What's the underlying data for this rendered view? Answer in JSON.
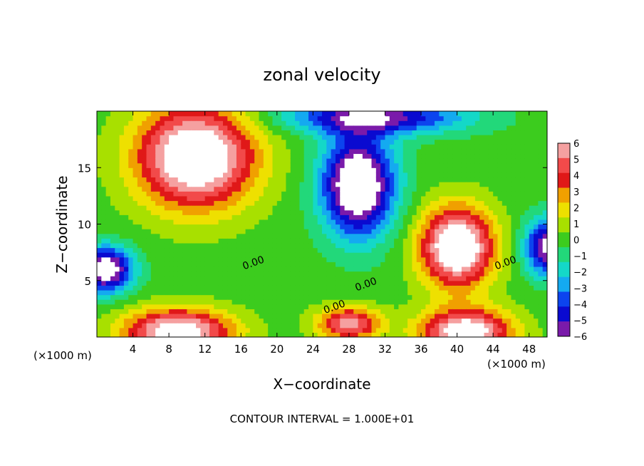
{
  "chart_data": {
    "type": "heatmap",
    "title": "zonal velocity",
    "xlabel": "X−coordinate",
    "ylabel": "Z−coordinate",
    "x_unit_left": "(×1000 m)",
    "x_unit_right": "(×1000 m)",
    "footer": "CONTOUR INTERVAL = 1.000E+01",
    "xlim": [
      0,
      50
    ],
    "ylim": [
      0,
      20
    ],
    "x_ticks": [
      "4",
      "8",
      "12",
      "16",
      "20",
      "24",
      "28",
      "32",
      "36",
      "40",
      "44",
      "48"
    ],
    "y_ticks": [
      "5",
      "10",
      "15"
    ],
    "colorbar": {
      "min": -6,
      "max": 6,
      "labels": [
        "6",
        "5",
        "4",
        "3",
        "2",
        "1",
        "0",
        "−1",
        "−2",
        "−3",
        "−4",
        "−5",
        "−6"
      ],
      "colors": [
        "#f5a0a0",
        "#f24a4a",
        "#e01818",
        "#f0a000",
        "#eee000",
        "#a8e000",
        "#3ccc1e",
        "#22d87a",
        "#14d8c8",
        "#14aaf0",
        "#0c44ee",
        "#0a0ad0",
        "#7a1aaa"
      ]
    },
    "contour_labels": [
      "0.00",
      "0.00",
      "0.00",
      "0.00"
    ],
    "features": [
      {
        "kind": "max",
        "x": 11,
        "z": 16,
        "radius_x": 6.5,
        "radius_z": 4.5,
        "value": 9
      },
      {
        "kind": "max",
        "x": 40,
        "z": 8,
        "radius_x": 4,
        "radius_z": 3.5,
        "value": 9
      },
      {
        "kind": "max",
        "x": 9,
        "z": 0.5,
        "radius_x": 6,
        "radius_z": 2,
        "value": 8
      },
      {
        "kind": "max",
        "x": 41,
        "z": 0.5,
        "radius_x": 5,
        "radius_z": 2,
        "value": 8
      },
      {
        "kind": "max",
        "x": 28,
        "z": 1.2,
        "radius_x": 3.5,
        "radius_z": 1.5,
        "value": 6
      },
      {
        "kind": "min",
        "x": 29,
        "z": 13.5,
        "radius_x": 4,
        "radius_z": 4.5,
        "value": -9
      },
      {
        "kind": "min",
        "x": 31,
        "z": 19.5,
        "radius_x": 10,
        "radius_z": 1.5,
        "value": -6
      },
      {
        "kind": "min",
        "x": 1,
        "z": 6,
        "radius_x": 3,
        "radius_z": 2,
        "value": -8
      },
      {
        "kind": "min",
        "x": 50,
        "z": 8,
        "radius_x": 2.5,
        "radius_z": 2.5,
        "value": -7
      }
    ]
  }
}
